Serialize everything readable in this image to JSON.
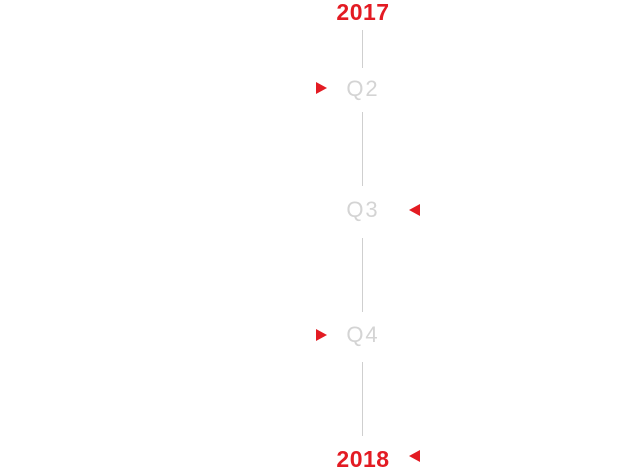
{
  "colors": {
    "accent": "#e31b23",
    "quarter_text": "#d4d4d4",
    "line": "#cfcfcf"
  },
  "timeline": {
    "start_year": "2017",
    "end_year": "2018",
    "quarters": [
      {
        "label": "Q2",
        "marker": "arrow-right-icon"
      },
      {
        "label": "Q3",
        "marker": "arrow-left-icon"
      },
      {
        "label": "Q4",
        "marker": "arrow-right-icon"
      }
    ],
    "end_marker": "arrow-left-icon"
  }
}
